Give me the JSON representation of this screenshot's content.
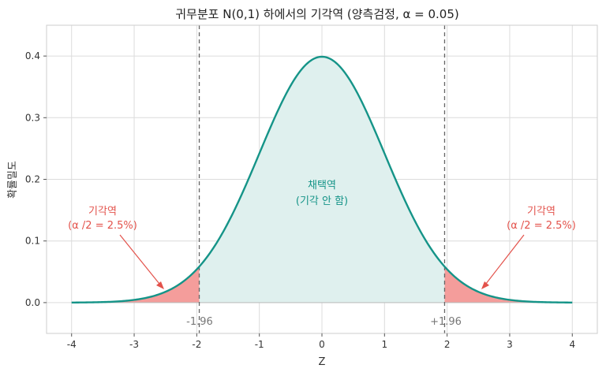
{
  "chart_data": {
    "type": "area",
    "title": "귀무분포 N(0,1) 하에서의 기각역 (양측검정, α = 0.05)",
    "xlabel": "Z",
    "ylabel": "확률밀도",
    "xlim": [
      -4.4,
      4.4
    ],
    "ylim": [
      -0.05,
      0.45
    ],
    "xticks": [
      -4,
      -3,
      -2,
      -1,
      0,
      1,
      2,
      3,
      4
    ],
    "xtick_labels": [
      "-4",
      "-3",
      "-2",
      "-1",
      "0",
      "1",
      "2",
      "3",
      "4"
    ],
    "yticks": [
      0.0,
      0.1,
      0.2,
      0.3,
      0.4
    ],
    "ytick_labels": [
      "0.0",
      "0.1",
      "0.2",
      "0.3",
      "0.4"
    ],
    "grid": true,
    "series": [
      {
        "x": [
          -4.0,
          -3.5,
          -3.0,
          -2.5,
          -2.0,
          -1.96,
          -1.5,
          -1.0,
          -0.5,
          0.0,
          0.5,
          1.0,
          1.5,
          1.96,
          2.0,
          2.5,
          3.0,
          3.5,
          4.0
        ],
        "y": [
          0.0001,
          0.0009,
          0.0044,
          0.0175,
          0.054,
          0.0584,
          0.1295,
          0.242,
          0.3521,
          0.3989,
          0.3521,
          0.242,
          0.1295,
          0.0584,
          0.054,
          0.0175,
          0.0044,
          0.0009,
          0.0001
        ]
      }
    ],
    "critical_values": [
      -1.96,
      1.96
    ],
    "critical_labels": [
      "-1.96",
      "+1.96"
    ],
    "regions": {
      "acceptance": {
        "label_line1": "채택역",
        "label_line2": "(기각 안 함)",
        "x_range": [
          -1.96,
          1.96
        ]
      },
      "rejection_left": {
        "label_line1": "기각역",
        "label_line2": "(α /2 = 2.5%)",
        "x_range": [
          -4,
          -1.96
        ]
      },
      "rejection_right": {
        "label_line1": "기각역",
        "label_line2": "(α /2 = 2.5%)",
        "x_range": [
          1.96,
          4
        ]
      }
    },
    "colors": {
      "curve": "#159488",
      "acceptance_fill": "#dff0ee",
      "rejection_fill": "#f49d9b",
      "rejection_text": "#e3524b",
      "acceptance_text": "#159488",
      "critical_line": "#666666",
      "grid": "#dcdcdc"
    }
  }
}
